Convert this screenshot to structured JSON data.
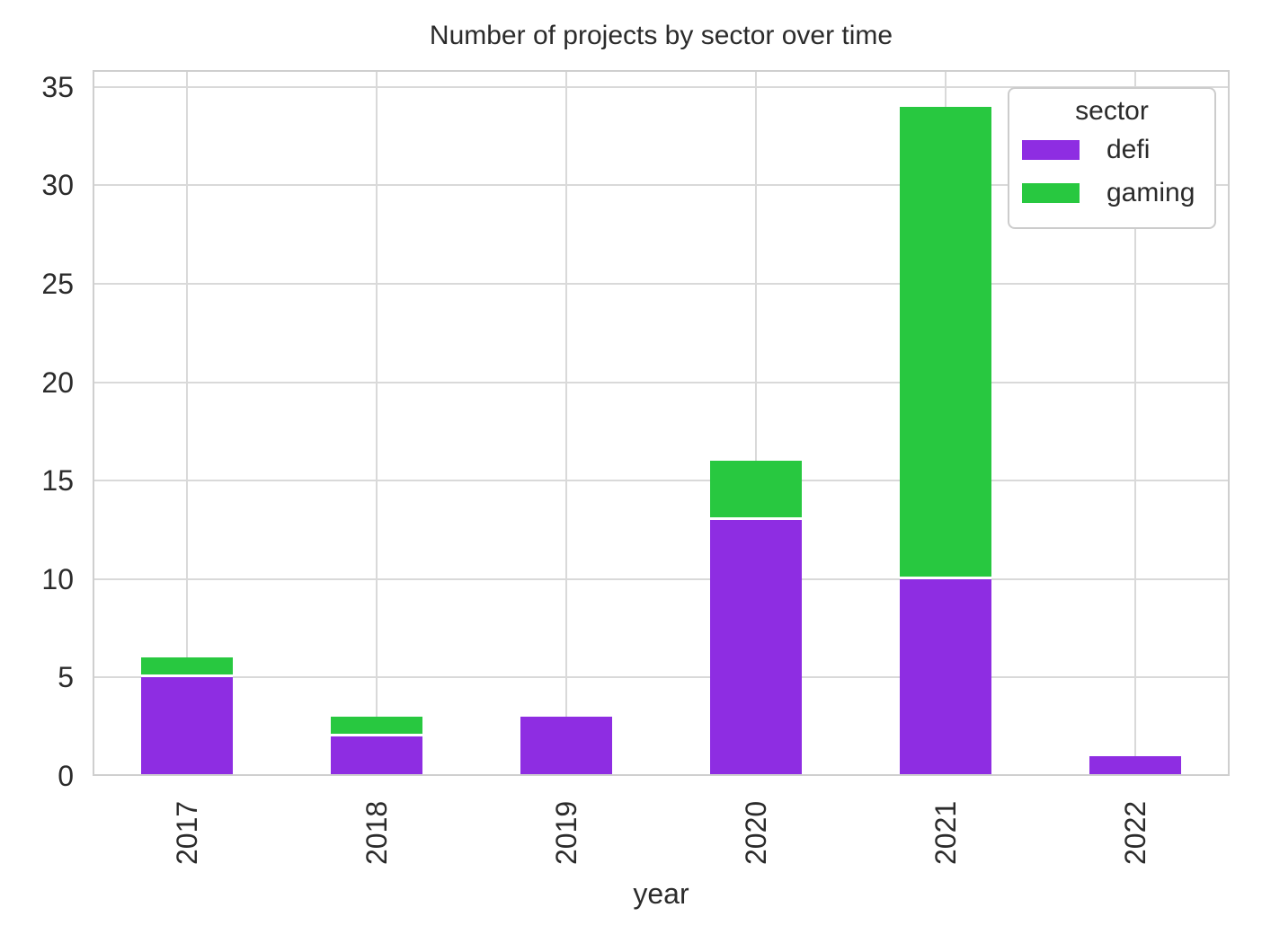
{
  "title": "Number of projects by sector over time",
  "xlabel": "year",
  "legend": {
    "title": "sector",
    "entries": [
      {
        "label": "defi",
        "color": "#8e2de2"
      },
      {
        "label": "gaming",
        "color": "#28c840"
      }
    ]
  },
  "colors": {
    "defi": "#8e2de2",
    "gaming": "#28c840",
    "grid": "#d9d9d9",
    "spine": "#cfcfcf",
    "text": "#2b2b2b",
    "background": "#ffffff"
  },
  "chart_data": {
    "type": "bar",
    "stacked": true,
    "title": "Number of projects by sector over time",
    "xlabel": "year",
    "ylabel": "",
    "categories": [
      "2017",
      "2018",
      "2019",
      "2020",
      "2021",
      "2022"
    ],
    "series": [
      {
        "name": "defi",
        "color": "#8e2de2",
        "values": [
          5,
          2,
          3,
          13,
          10,
          1
        ]
      },
      {
        "name": "gaming",
        "color": "#28c840",
        "values": [
          1,
          1,
          0,
          3,
          24,
          0
        ]
      }
    ],
    "totals": [
      6,
      3,
      3,
      16,
      34,
      1
    ],
    "yticks": [
      0,
      5,
      10,
      15,
      20,
      25,
      30,
      35
    ],
    "ylim": [
      0,
      35.86
    ],
    "grid": true,
    "legend_position": "upper right",
    "xtick_rotation": 90
  }
}
